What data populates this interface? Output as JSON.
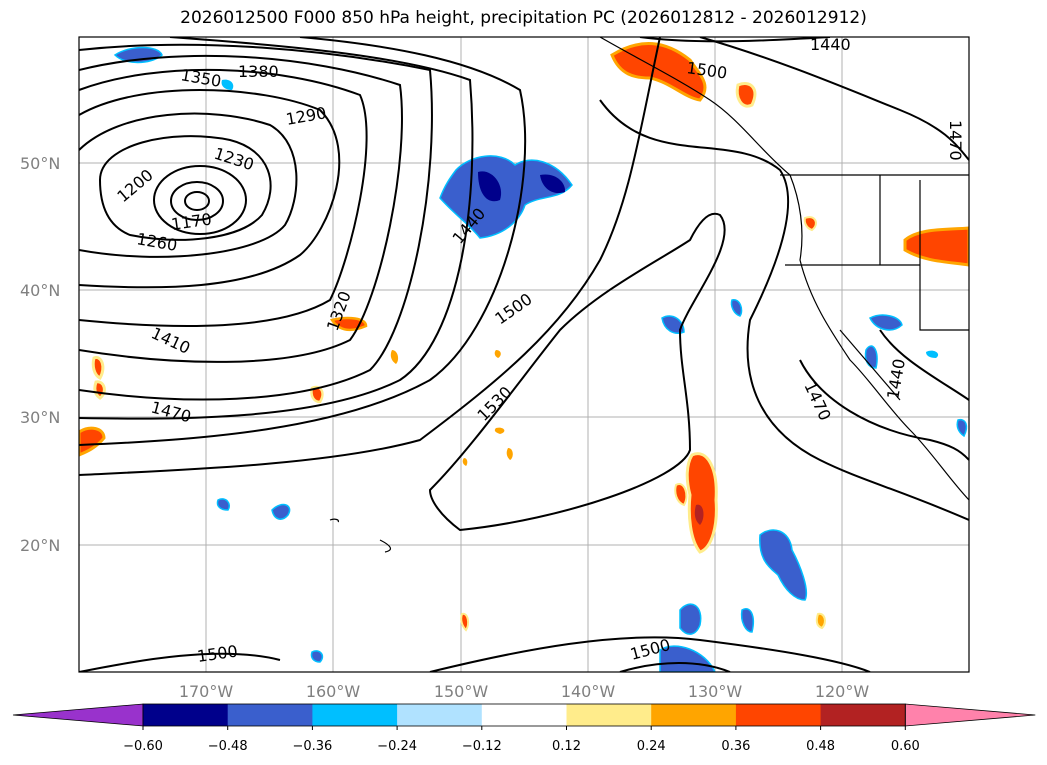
{
  "title": "2026012500 F000 850 hPa height, precipitation PC (2026012812 - 2026012912)",
  "map": {
    "lat_ticks": [
      "50°N",
      "40°N",
      "30°N",
      "20°N"
    ],
    "lon_ticks": [
      "170°W",
      "160°W",
      "150°W",
      "140°W",
      "130°W",
      "120°W"
    ],
    "contour_labels": [
      "1440",
      "1350",
      "1380",
      "1500",
      "1290",
      "1470",
      "1230",
      "1200",
      "1170",
      "1260",
      "1440",
      "1320",
      "1500",
      "1410",
      "1530",
      "1470",
      "1440",
      "1470",
      "1500",
      "1500"
    ]
  },
  "colorbar": {
    "levels": [
      "−0.60",
      "−0.48",
      "−0.36",
      "−0.24",
      "−0.12",
      "0.12",
      "0.24",
      "0.36",
      "0.48",
      "0.60"
    ],
    "colors": [
      "#9932cc",
      "#00008b",
      "#3a5fcd",
      "#00bfff",
      "#b0e2ff",
      "#ffffff",
      "#ffec8b",
      "#ffa500",
      "#ff4500",
      "#b22222",
      "#ff82ab"
    ]
  }
}
